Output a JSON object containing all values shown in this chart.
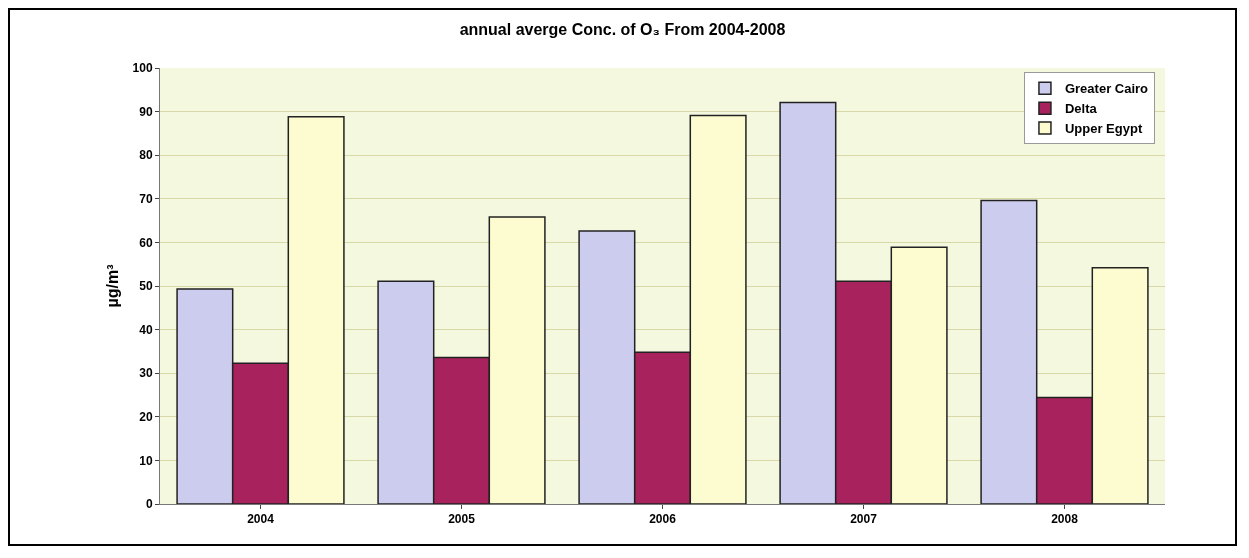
{
  "chart_data": {
    "type": "bar",
    "title": "annual averge Conc. of O₃ From 2004-2008",
    "ylabel": "µg/m³",
    "categories": [
      "2004",
      "2005",
      "2006",
      "2007",
      "2008"
    ],
    "series": [
      {
        "name": "Greater Cairo",
        "color": "#ccccee",
        "values": [
          49.3,
          51.1,
          62.6,
          92.1,
          69.6
        ]
      },
      {
        "name": "Delta",
        "color": "#a8235e",
        "values": [
          32.3,
          33.6,
          34.8,
          51.1,
          24.4
        ]
      },
      {
        "name": "Upper Egypt",
        "color": "#fcfcd0",
        "values": [
          88.8,
          65.8,
          89.1,
          58.9,
          54.2
        ]
      }
    ],
    "ylim": [
      0,
      100
    ],
    "yticks": [
      0,
      10,
      20,
      30,
      40,
      50,
      60,
      70,
      80,
      90,
      100
    ],
    "grid": "y",
    "legend": "top right"
  }
}
